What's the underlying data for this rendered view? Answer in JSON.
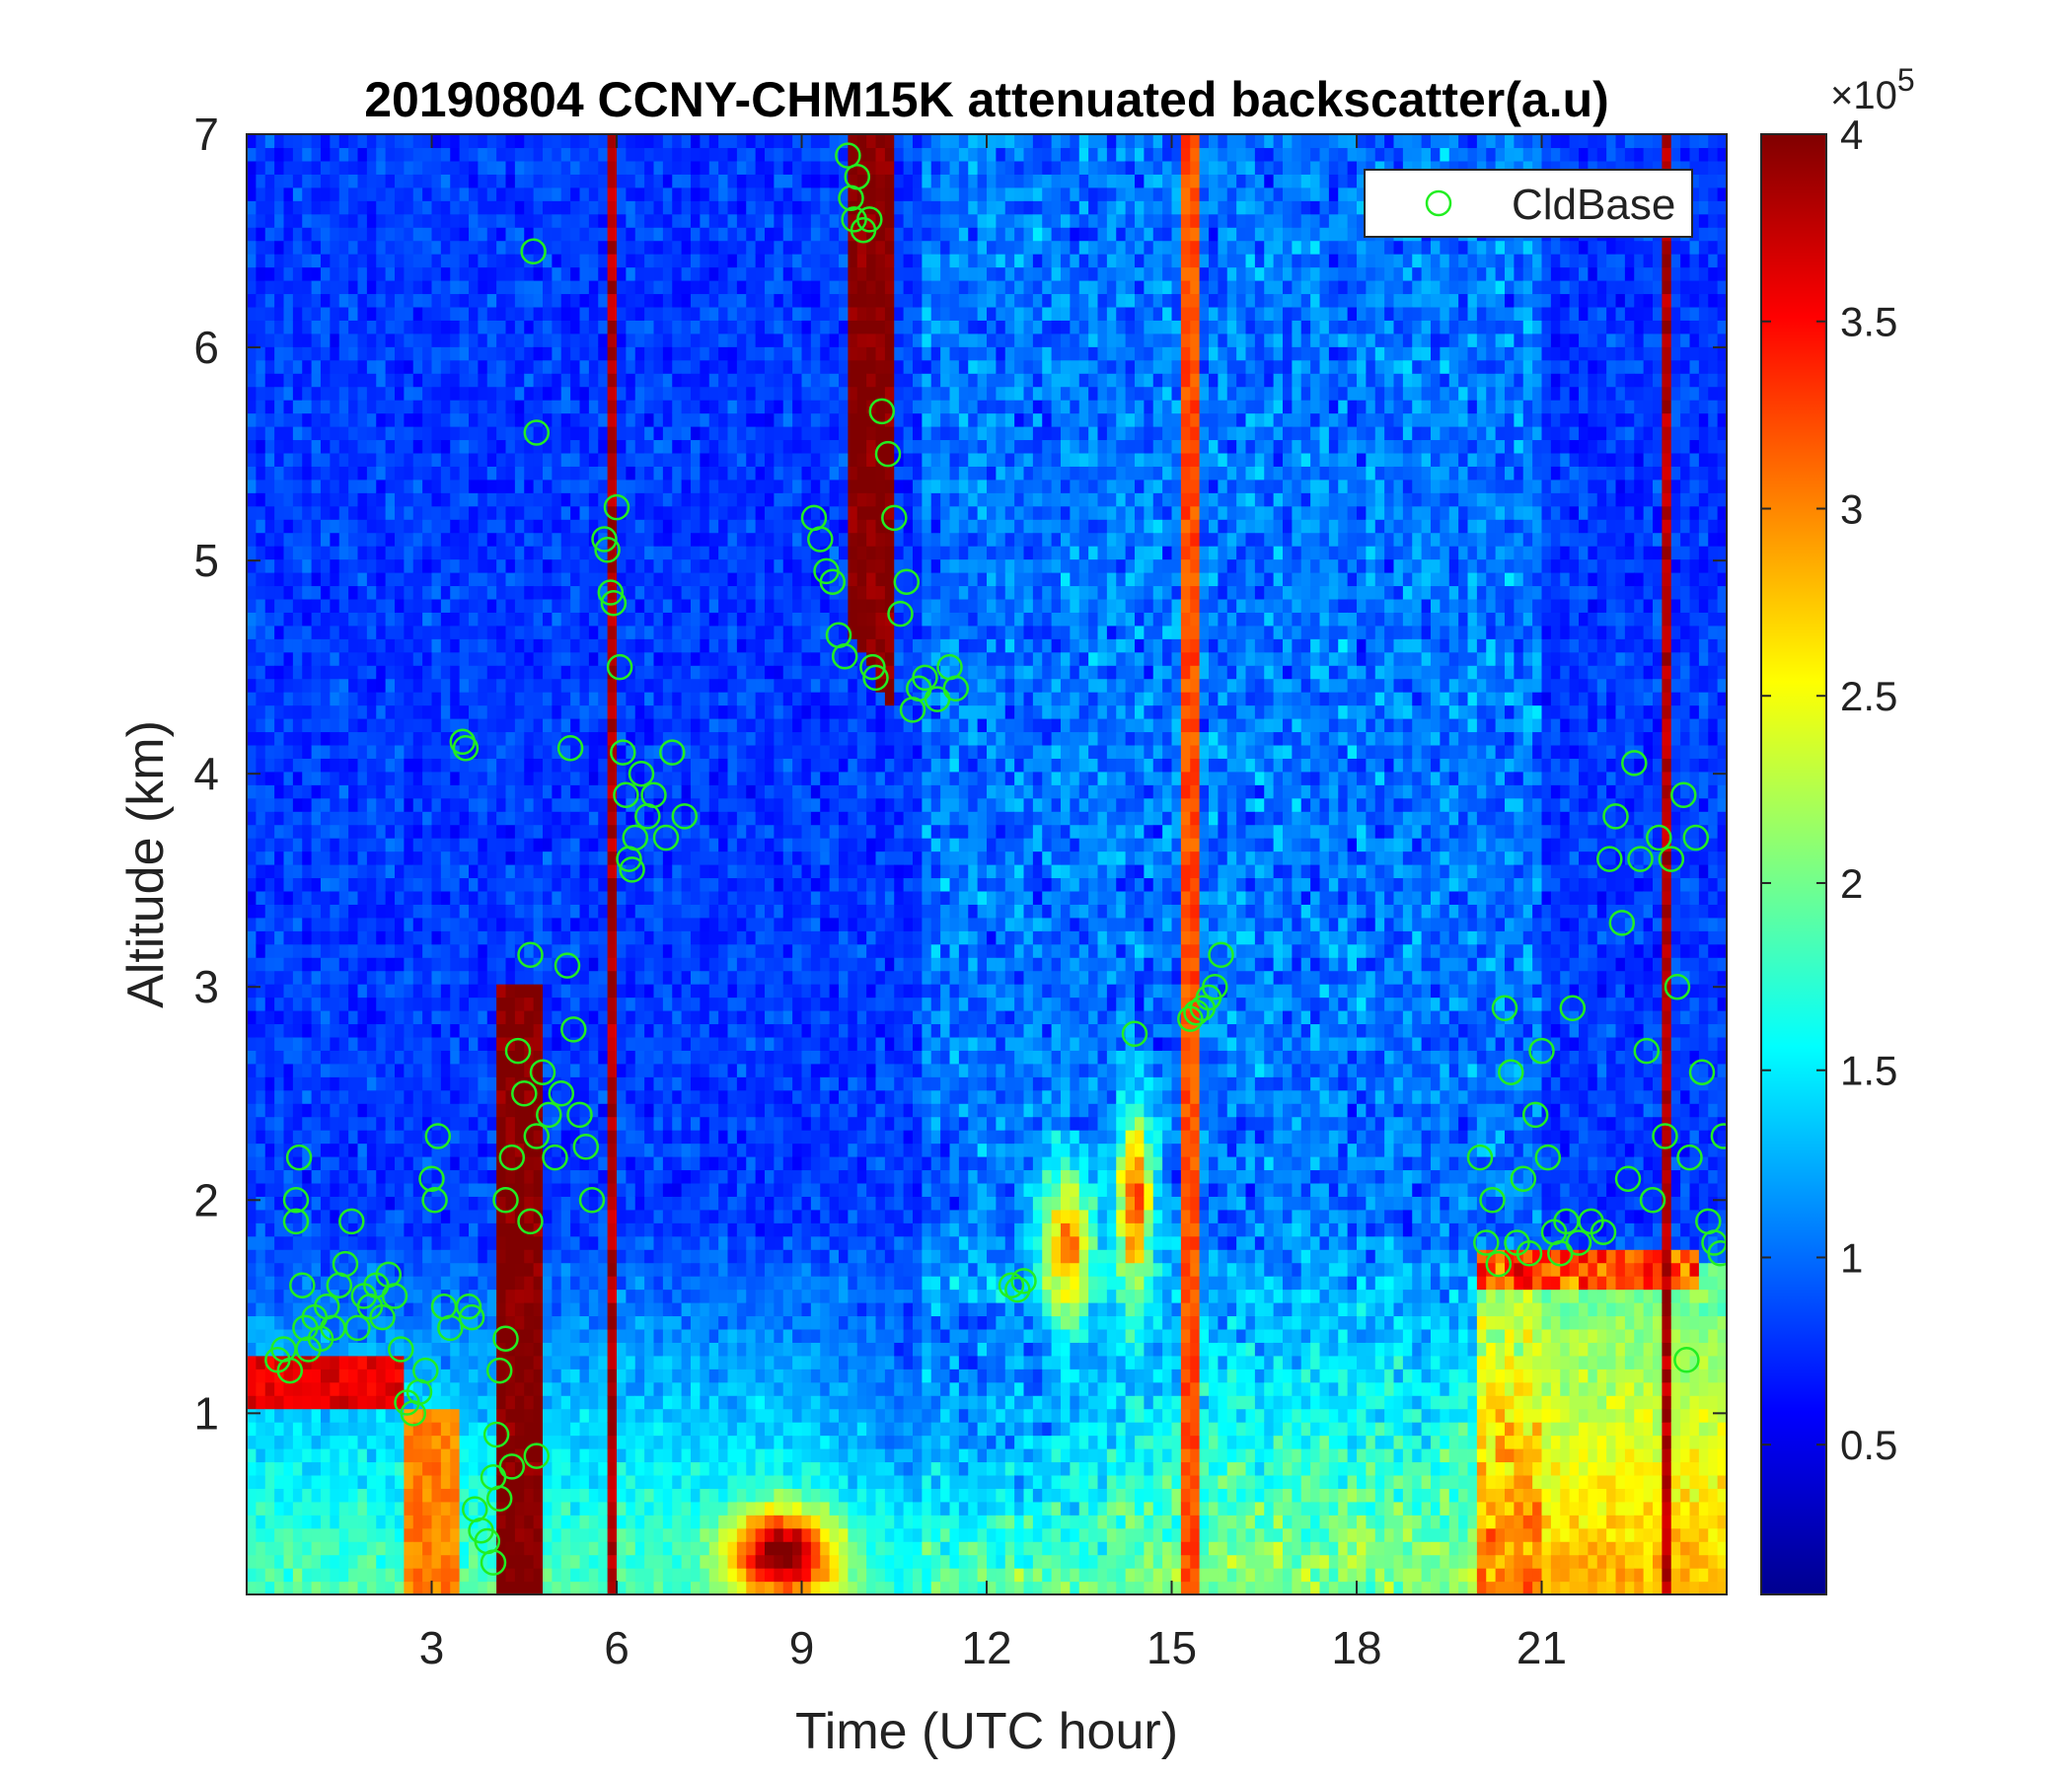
{
  "chart_data": {
    "type": "heatmap",
    "title": "20190804 CCNY-CHM15K attenuated backscatter(a.u)",
    "xlabel": "Time (UTC hour)",
    "ylabel": "Altitude (km)",
    "xlim": [
      0,
      24
    ],
    "ylim": [
      0.15,
      7
    ],
    "x_ticks": [
      3,
      6,
      9,
      12,
      15,
      18,
      21
    ],
    "y_ticks": [
      1,
      2,
      3,
      4,
      5,
      6,
      7
    ],
    "x_tick_labels": [
      "3",
      "6",
      "9",
      "12",
      "15",
      "18",
      "21"
    ],
    "y_tick_labels": [
      "1",
      "2",
      "3",
      "4",
      "5",
      "6",
      "7"
    ],
    "colorbar": {
      "colormap": "jet",
      "range": [
        0.1,
        4
      ],
      "ticks": [
        0.5,
        1,
        1.5,
        2,
        2.5,
        3,
        3.5,
        4
      ],
      "tick_labels": [
        "0.5",
        "1",
        "1.5",
        "2",
        "2.5",
        "3",
        "3.5",
        "4"
      ],
      "exponent_label_base": "×10",
      "exponent_label_power": "5"
    },
    "legend": {
      "position": "top-right",
      "entries": [
        {
          "name": "CldBase",
          "marker": "circle",
          "color": "#22ee22"
        }
      ]
    },
    "grid": false,
    "series": [
      {
        "name": "CldBase",
        "marker": "circle",
        "color": "#22ee22",
        "points": [
          [
            0.5,
            1.25
          ],
          [
            0.6,
            1.3
          ],
          [
            0.7,
            1.2
          ],
          [
            0.8,
            1.9
          ],
          [
            0.8,
            2.0
          ],
          [
            0.85,
            2.2
          ],
          [
            0.9,
            1.6
          ],
          [
            0.95,
            1.4
          ],
          [
            1.0,
            1.3
          ],
          [
            1.1,
            1.45
          ],
          [
            1.2,
            1.35
          ],
          [
            1.3,
            1.5
          ],
          [
            1.4,
            1.4
          ],
          [
            1.5,
            1.6
          ],
          [
            1.6,
            1.7
          ],
          [
            1.7,
            1.9
          ],
          [
            1.8,
            1.4
          ],
          [
            1.9,
            1.55
          ],
          [
            2.0,
            1.5
          ],
          [
            2.1,
            1.6
          ],
          [
            2.2,
            1.45
          ],
          [
            2.3,
            1.65
          ],
          [
            2.4,
            1.55
          ],
          [
            2.5,
            1.3
          ],
          [
            2.6,
            1.05
          ],
          [
            2.7,
            1.0
          ],
          [
            2.8,
            1.1
          ],
          [
            2.9,
            1.2
          ],
          [
            3.0,
            2.1
          ],
          [
            3.05,
            2.0
          ],
          [
            3.1,
            2.3
          ],
          [
            3.2,
            1.5
          ],
          [
            3.3,
            1.4
          ],
          [
            3.5,
            4.15
          ],
          [
            3.55,
            4.12
          ],
          [
            3.6,
            1.5
          ],
          [
            3.65,
            1.45
          ],
          [
            3.7,
            0.55
          ],
          [
            3.8,
            0.45
          ],
          [
            3.9,
            0.4
          ],
          [
            4.0,
            0.7
          ],
          [
            4.05,
            0.9
          ],
          [
            4.1,
            1.2
          ],
          [
            4.2,
            1.35
          ],
          [
            4.3,
            0.75
          ],
          [
            4.0,
            0.3
          ],
          [
            4.1,
            0.6
          ],
          [
            4.2,
            2.0
          ],
          [
            4.3,
            2.2
          ],
          [
            4.4,
            2.7
          ],
          [
            4.5,
            2.5
          ],
          [
            4.6,
            1.9
          ],
          [
            4.7,
            2.3
          ],
          [
            4.8,
            2.6
          ],
          [
            4.9,
            2.4
          ],
          [
            5.0,
            2.2
          ],
          [
            5.1,
            2.5
          ],
          [
            5.2,
            3.1
          ],
          [
            5.3,
            2.8
          ],
          [
            5.4,
            2.4
          ],
          [
            5.5,
            2.25
          ],
          [
            5.6,
            2.0
          ],
          [
            4.6,
            3.15
          ],
          [
            4.7,
            0.8
          ],
          [
            4.65,
            6.45
          ],
          [
            4.7,
            5.6
          ],
          [
            5.25,
            4.12
          ],
          [
            5.8,
            5.1
          ],
          [
            5.85,
            5.05
          ],
          [
            5.9,
            4.85
          ],
          [
            5.95,
            4.8
          ],
          [
            6.0,
            5.25
          ],
          [
            6.05,
            4.5
          ],
          [
            6.1,
            4.1
          ],
          [
            6.15,
            3.9
          ],
          [
            6.2,
            3.6
          ],
          [
            6.25,
            3.55
          ],
          [
            6.3,
            3.7
          ],
          [
            6.4,
            4.0
          ],
          [
            6.5,
            3.8
          ],
          [
            6.6,
            3.9
          ],
          [
            6.8,
            3.7
          ],
          [
            6.9,
            4.1
          ],
          [
            7.1,
            3.8
          ],
          [
            9.2,
            5.2
          ],
          [
            9.3,
            5.1
          ],
          [
            9.4,
            4.95
          ],
          [
            9.5,
            4.9
          ],
          [
            9.6,
            4.65
          ],
          [
            9.7,
            4.55
          ],
          [
            9.75,
            6.9
          ],
          [
            9.8,
            6.7
          ],
          [
            9.85,
            6.6
          ],
          [
            9.9,
            6.8
          ],
          [
            10.0,
            6.55
          ],
          [
            10.1,
            6.6
          ],
          [
            10.15,
            4.5
          ],
          [
            10.2,
            4.45
          ],
          [
            10.3,
            5.7
          ],
          [
            10.4,
            5.5
          ],
          [
            10.5,
            5.2
          ],
          [
            10.6,
            4.75
          ],
          [
            10.7,
            4.9
          ],
          [
            10.8,
            4.3
          ],
          [
            10.9,
            4.4
          ],
          [
            11.0,
            4.45
          ],
          [
            11.2,
            4.35
          ],
          [
            11.4,
            4.5
          ],
          [
            11.5,
            4.4
          ],
          [
            12.4,
            1.6
          ],
          [
            12.5,
            1.58
          ],
          [
            12.6,
            1.62
          ],
          [
            14.4,
            2.78
          ],
          [
            15.3,
            2.85
          ],
          [
            15.4,
            2.88
          ],
          [
            15.5,
            2.9
          ],
          [
            15.6,
            2.95
          ],
          [
            15.7,
            3.0
          ],
          [
            15.8,
            3.15
          ],
          [
            20.0,
            2.2
          ],
          [
            20.1,
            1.8
          ],
          [
            20.2,
            2.0
          ],
          [
            20.3,
            1.7
          ],
          [
            20.4,
            2.9
          ],
          [
            20.5,
            2.6
          ],
          [
            20.6,
            1.8
          ],
          [
            20.7,
            2.1
          ],
          [
            20.8,
            1.75
          ],
          [
            20.9,
            2.4
          ],
          [
            21.0,
            2.7
          ],
          [
            21.1,
            2.2
          ],
          [
            21.2,
            1.85
          ],
          [
            21.3,
            1.75
          ],
          [
            21.4,
            1.9
          ],
          [
            21.5,
            2.9
          ],
          [
            21.6,
            1.8
          ],
          [
            21.8,
            1.9
          ],
          [
            22.0,
            1.85
          ],
          [
            22.1,
            3.6
          ],
          [
            22.2,
            3.8
          ],
          [
            22.3,
            3.3
          ],
          [
            22.4,
            2.1
          ],
          [
            22.5,
            4.05
          ],
          [
            22.6,
            3.6
          ],
          [
            22.7,
            2.7
          ],
          [
            22.8,
            2.0
          ],
          [
            22.9,
            3.7
          ],
          [
            23.0,
            2.3
          ],
          [
            23.1,
            3.6
          ],
          [
            23.2,
            3.0
          ],
          [
            23.3,
            3.9
          ],
          [
            23.35,
            1.25
          ],
          [
            23.4,
            2.2
          ],
          [
            23.5,
            3.7
          ],
          [
            23.6,
            2.6
          ],
          [
            23.7,
            1.9
          ],
          [
            23.8,
            1.8
          ],
          [
            23.9,
            1.75
          ],
          [
            23.95,
            2.3
          ]
        ]
      }
    ]
  }
}
